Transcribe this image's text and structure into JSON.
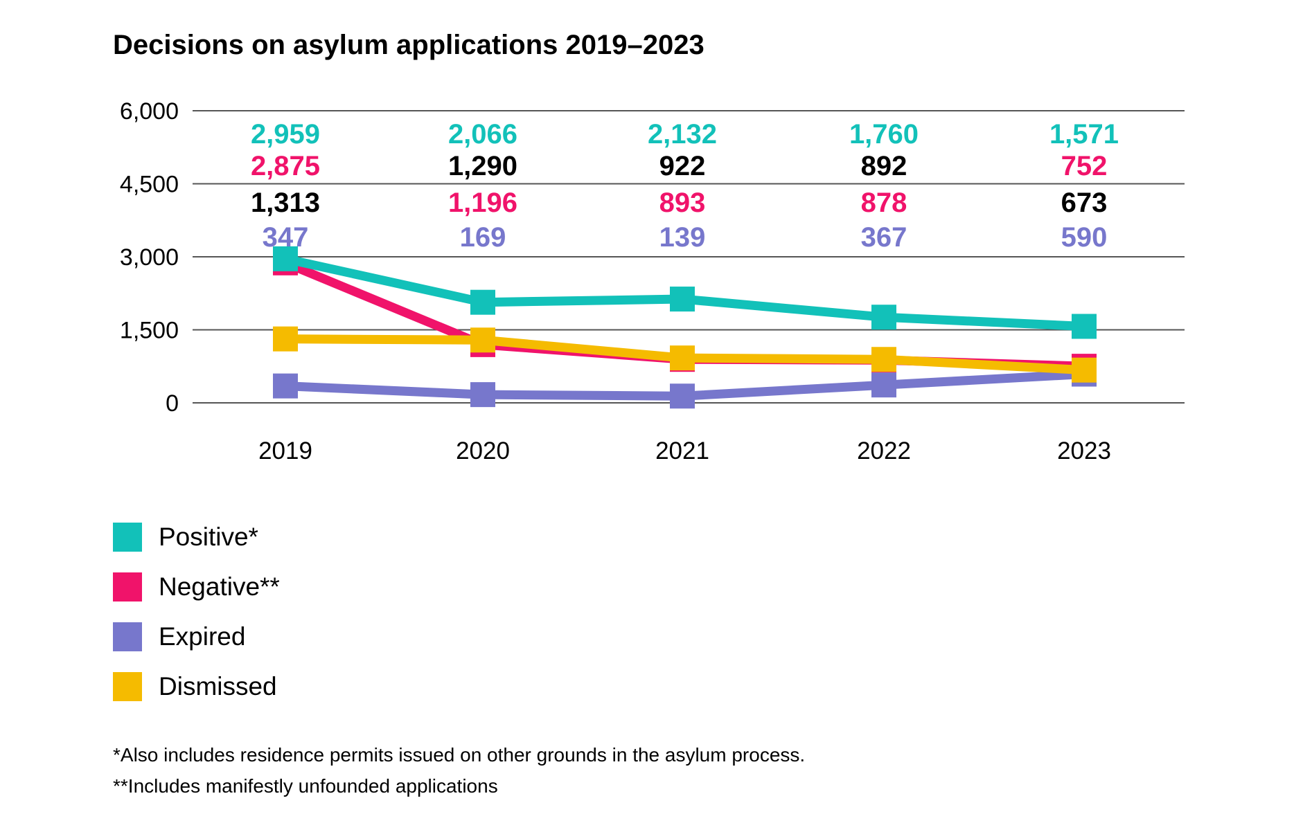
{
  "title": "Decisions on asylum applications 2019–2023",
  "colors": {
    "positive": "#12c1b9",
    "negative": "#f0136a",
    "expired": "#7777cc",
    "dismissed": "#f5bb00",
    "grid": "#555555",
    "text": "#000000"
  },
  "chart_data": {
    "type": "line",
    "title": "Decisions on asylum applications 2019–2023",
    "xlabel": "",
    "ylabel": "",
    "categories": [
      "2019",
      "2020",
      "2021",
      "2022",
      "2023"
    ],
    "ylim": [
      0,
      6000
    ],
    "yticks": [
      0,
      1500,
      3000,
      4500,
      6000
    ],
    "ytick_labels": [
      "0",
      "1,500",
      "3,000",
      "4,500",
      "6,000"
    ],
    "grid": true,
    "legend_position": "bottom-left",
    "series": [
      {
        "name": "Positive*",
        "key": "positive",
        "color": "#12c1b9",
        "values": [
          2959,
          2066,
          2132,
          1760,
          1571
        ],
        "labels": [
          "2,959",
          "2,066",
          "2,132",
          "1,760",
          "1,571"
        ]
      },
      {
        "name": "Negative**",
        "key": "negative",
        "color": "#f0136a",
        "values": [
          2875,
          1196,
          893,
          878,
          752
        ],
        "labels": [
          "2,875",
          "1,196",
          "893",
          "878",
          "752"
        ]
      },
      {
        "name": "Expired",
        "key": "expired",
        "color": "#7777cc",
        "values": [
          347,
          169,
          139,
          367,
          590
        ],
        "labels": [
          "347",
          "169",
          "139",
          "367",
          "590"
        ]
      },
      {
        "name": "Dismissed",
        "key": "dismissed",
        "color": "#f5bb00",
        "values": [
          1313,
          1290,
          922,
          892,
          673
        ],
        "labels": [
          "1,313",
          "1,290",
          "922",
          "892",
          "673"
        ]
      }
    ],
    "value_label_rows": [
      [
        "positive",
        "negative",
        "dismissed",
        "expired"
      ],
      [
        "positive",
        "dismissed",
        "negative",
        "expired"
      ],
      [
        "positive",
        "dismissed",
        "negative",
        "expired"
      ],
      [
        "positive",
        "dismissed",
        "negative",
        "expired"
      ],
      [
        "positive",
        "negative",
        "dismissed",
        "expired"
      ]
    ],
    "legend": [
      {
        "key": "positive",
        "label": "Positive*"
      },
      {
        "key": "negative",
        "label": "Negative**"
      },
      {
        "key": "expired",
        "label": "Expired"
      },
      {
        "key": "dismissed",
        "label": "Dismissed"
      }
    ]
  },
  "footnotes": [
    "*Also includes residence permits issued on other grounds in the asylum process.",
    "**Includes manifestly unfounded applications"
  ]
}
